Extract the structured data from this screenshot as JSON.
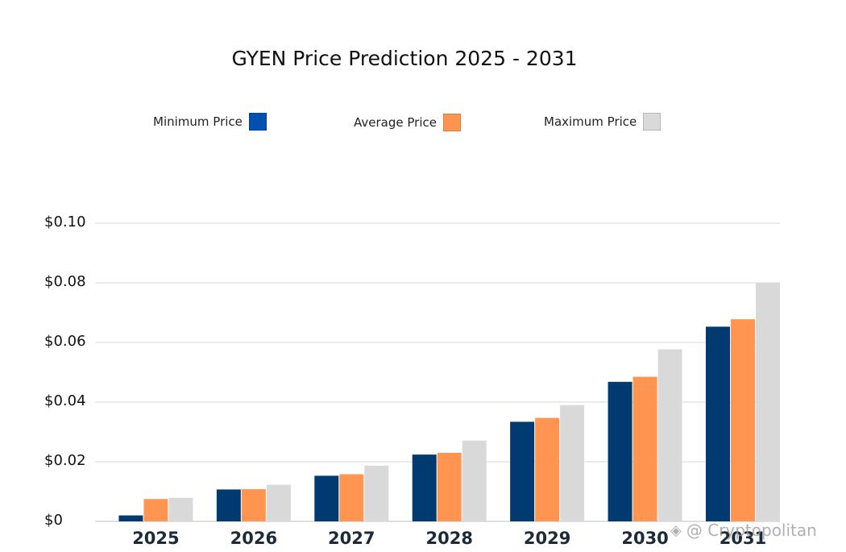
{
  "chart_data": {
    "type": "bar",
    "title": "GYEN Price Prediction 2025 - 2031",
    "categories": [
      "2025",
      "2026",
      "2027",
      "2028",
      "2029",
      "2030",
      "2031"
    ],
    "series": [
      {
        "name": "Minimum Price",
        "color": "#003a70",
        "values": [
          0.002,
          0.0107,
          0.0153,
          0.0224,
          0.0334,
          0.0468,
          0.0653
        ]
      },
      {
        "name": "Average Price",
        "color": "#ff9550",
        "values": [
          0.0075,
          0.0108,
          0.0158,
          0.023,
          0.0347,
          0.0485,
          0.0678
        ]
      },
      {
        "name": "Maximum Price",
        "color": "#d9d9d9",
        "values": [
          0.0079,
          0.0123,
          0.0187,
          0.0271,
          0.039,
          0.0577,
          0.08
        ]
      }
    ],
    "yticks": [
      "$0",
      "$0.02",
      "$0.04",
      "$0.06",
      "$0.08",
      "$0.10"
    ],
    "ylim": [
      0,
      0.1
    ],
    "xlabel": "",
    "ylabel": "",
    "grid": true,
    "legend_position": "top"
  },
  "legend_swatch_colors": {
    "min": "#0050b0",
    "avg": "#ff9550",
    "max": "#d9d9d9"
  },
  "watermark": {
    "icon": "binance-icon",
    "text": "@ Cryptopolitan"
  }
}
